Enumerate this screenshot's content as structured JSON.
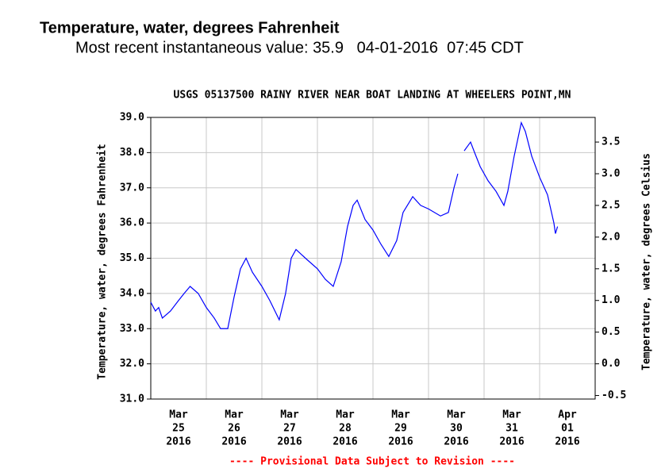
{
  "chart_data": {
    "type": "line",
    "page_title": "Temperature, water, degrees Fahrenheit",
    "subtitle": "Most recent instantaneous value: 35.9   04-01-2016  07:45 CDT",
    "title": "USGS 05137500 RAINY RIVER NEAR BOAT LANDING AT WHEELERS POINT,MN",
    "ylabel": "Temperature, water, degrees Fahrenheit",
    "y2label": "Temperature, water, degrees Celsius",
    "footnote": "---- Provisional Data Subject to Revision ----",
    "color": "#0000ff",
    "grid": true,
    "xlim": [
      "2016-03-25T00:00",
      "2016-04-02T00:00"
    ],
    "xticks": [
      {
        "value": "2016-03-25T00:00",
        "label": [
          "Mar",
          "25",
          "2016"
        ]
      },
      {
        "value": "2016-03-26T00:00",
        "label": [
          "Mar",
          "26",
          "2016"
        ]
      },
      {
        "value": "2016-03-27T00:00",
        "label": [
          "Mar",
          "27",
          "2016"
        ]
      },
      {
        "value": "2016-03-28T00:00",
        "label": [
          "Mar",
          "28",
          "2016"
        ]
      },
      {
        "value": "2016-03-29T00:00",
        "label": [
          "Mar",
          "29",
          "2016"
        ]
      },
      {
        "value": "2016-03-30T00:00",
        "label": [
          "Mar",
          "30",
          "2016"
        ]
      },
      {
        "value": "2016-03-31T00:00",
        "label": [
          "Mar",
          "31",
          "2016"
        ]
      },
      {
        "value": "2016-04-01T00:00",
        "label": [
          "Apr",
          "01",
          "2016"
        ]
      }
    ],
    "ylim": [
      31.0,
      39.0
    ],
    "yticks": [
      {
        "value": 31,
        "label": "31.0"
      },
      {
        "value": 32,
        "label": "32.0"
      },
      {
        "value": 33,
        "label": "33.0"
      },
      {
        "value": 34,
        "label": "34.0"
      },
      {
        "value": 35,
        "label": "35.0"
      },
      {
        "value": 36,
        "label": "36.0"
      },
      {
        "value": 37,
        "label": "37.0"
      },
      {
        "value": 38,
        "label": "38.0"
      },
      {
        "value": 39,
        "label": "39.0"
      }
    ],
    "y2lim": [
      -0.556,
      3.889
    ],
    "y2ticks": [
      -0.5,
      {
        "value": 0,
        "label": "0.0"
      },
      0.5,
      {
        "value": 1,
        "label": "1.0"
      },
      1.5,
      {
        "value": 2,
        "label": "2.0"
      },
      2.5,
      {
        "value": 3,
        "label": "3.0"
      },
      3.5
    ],
    "x": [
      "2016-03-25T00:00",
      "2016-03-25T02:00",
      "2016-03-25T03:25",
      "2016-03-25T05:00",
      "2016-03-25T08:30",
      "2016-03-25T12:00",
      "2016-03-25T14:25",
      "2016-03-25T17:00",
      "2016-03-25T20:30",
      "2016-03-26T00:00",
      "2016-03-26T03:25",
      "2016-03-26T06:10",
      "2016-03-26T09:15",
      "2016-03-26T12:00",
      "2016-03-26T14:45",
      "2016-03-26T17:10",
      "2016-03-26T19:55",
      "2016-03-27T00:00",
      "2016-03-27T03:25",
      "2016-03-27T07:30",
      "2016-03-27T10:15",
      "2016-03-27T12:40",
      "2016-03-27T14:45",
      "2016-03-27T18:50",
      "2016-03-28T00:00",
      "2016-03-28T03:25",
      "2016-03-28T06:50",
      "2016-03-28T10:15",
      "2016-03-28T13:00",
      "2016-03-28T15:25",
      "2016-03-28T17:10",
      "2016-03-28T20:35",
      "2016-03-29T00:00",
      "2016-03-29T03:25",
      "2016-03-29T06:50",
      "2016-03-29T10:15",
      "2016-03-29T13:00",
      "2016-03-29T17:10",
      "2016-03-29T20:35",
      "2016-03-30T00:00",
      "2016-03-30T05:10",
      "2016-03-30T08:35",
      "2016-03-30T11:00",
      "2016-03-30T12:40",
      "2016-03-30T13:45",
      "2016-03-30T15:25",
      "2016-03-30T18:10",
      "2016-03-30T19:55",
      "2016-03-30T22:20",
      "2016-03-31T01:45",
      "2016-03-31T05:10",
      "2016-03-31T08:35",
      "2016-03-31T10:15",
      "2016-03-31T13:00",
      "2016-03-31T16:05",
      "2016-03-31T17:50",
      "2016-03-31T20:35",
      "2016-04-01T00:00",
      "2016-04-01T03:25",
      "2016-04-01T06:10",
      "2016-04-01T06:50",
      "2016-04-01T07:45"
    ],
    "values": [
      33.75,
      33.5,
      33.6,
      33.3,
      33.5,
      33.8,
      34.0,
      34.2,
      34.0,
      33.6,
      33.3,
      33.0,
      33.0,
      33.9,
      34.7,
      35.0,
      34.6,
      34.2,
      33.8,
      33.25,
      34.0,
      35.0,
      35.25,
      35.0,
      34.7,
      34.4,
      34.2,
      34.9,
      35.9,
      36.5,
      36.65,
      36.1,
      35.8,
      35.4,
      35.05,
      35.5,
      36.3,
      36.75,
      36.5,
      36.4,
      36.2,
      36.3,
      37.0,
      37.4,
      null,
      38.05,
      38.3,
      38.0,
      37.6,
      37.2,
      36.9,
      36.5,
      36.9,
      37.9,
      38.85,
      38.6,
      37.9,
      37.3,
      36.8,
      36.0,
      35.7,
      35.9
    ]
  }
}
